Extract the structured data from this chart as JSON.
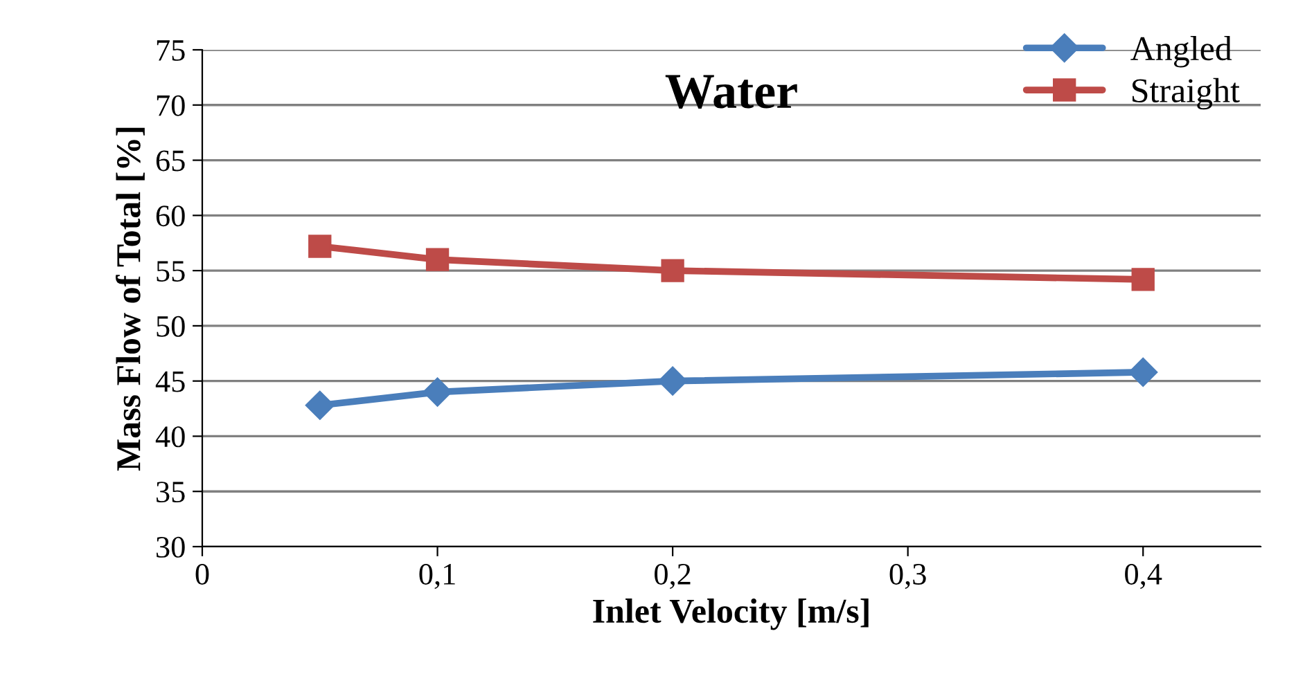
{
  "chart_data": {
    "type": "line",
    "title": "Water",
    "xlabel": "Inlet Velocity [m/s]",
    "ylabel": "Mass Flow of Total [%]",
    "x": [
      0.05,
      0.1,
      0.2,
      0.4
    ],
    "series": [
      {
        "name": "Angled",
        "color": "#4a7ebb",
        "marker": "diamond",
        "values": [
          42.8,
          44.0,
          45.0,
          45.8
        ]
      },
      {
        "name": "Straight",
        "color": "#be4b48",
        "marker": "square",
        "values": [
          57.2,
          56.0,
          55.0,
          54.2
        ]
      }
    ],
    "xlim": [
      0,
      0.45
    ],
    "xticks": [
      0,
      {
        "value": 0.1,
        "label": "0,1"
      },
      {
        "value": 0.2,
        "label": "0,2"
      },
      {
        "value": 0.3,
        "label": "0,3"
      },
      {
        "value": 0.4,
        "label": "0,4"
      }
    ],
    "ylim": [
      30,
      75
    ],
    "yticks": [
      30,
      35,
      40,
      45,
      50,
      55,
      60,
      65,
      70,
      75
    ],
    "grid": "y",
    "legend": "top right",
    "line_style": "solid"
  }
}
